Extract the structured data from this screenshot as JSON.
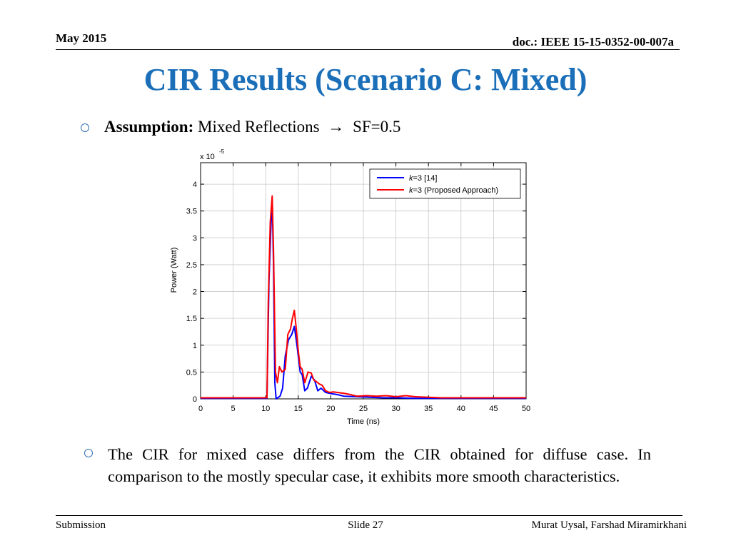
{
  "header": {
    "date": "May 2015",
    "doc": "doc.: IEEE 15-15-0352-00-007a"
  },
  "title": "CIR Results (Scenario C: Mixed)",
  "assumption": {
    "label": "Assumption:",
    "text": "Mixed Reflections",
    "arrow": "→",
    "sf": "SF=0.5"
  },
  "note": "The CIR for mixed case differs from the CIR obtained for diffuse case. In comparison to the mostly specular case, it exhibits more smooth characteristics.",
  "footer": {
    "left": "Submission",
    "center": "Slide 27",
    "right": "Murat Uysal, Farshad Miramirkhani"
  },
  "colors": {
    "title": "#1a6fb8",
    "bullet": "#2e6fb0",
    "series1": "#0000ff",
    "series2": "#ff0000"
  },
  "chart_data": {
    "type": "line",
    "xlabel": "Time (ns)",
    "ylabel": "Power (Watt)",
    "y_multiplier": "x 10",
    "y_exponent": "-5",
    "xlim": [
      0,
      50
    ],
    "ylim": [
      0,
      4.4
    ],
    "xticks": [
      0,
      5,
      10,
      15,
      20,
      25,
      30,
      35,
      40,
      45,
      50
    ],
    "yticks": [
      0,
      0.5,
      1,
      1.5,
      2,
      2.5,
      3,
      3.5,
      4
    ],
    "ytick_labels": [
      "0",
      "0.5",
      "1",
      "1.5",
      "2",
      "2.5",
      "3",
      "3.5",
      "4"
    ],
    "grid": true,
    "legend_position": "top-right",
    "series": [
      {
        "name_italic": "k",
        "name_rest": "=3 [14]",
        "color": "#0000ff",
        "points": [
          [
            0,
            0.01
          ],
          [
            10.2,
            0.01
          ],
          [
            10.5,
            2.2
          ],
          [
            10.8,
            3.2
          ],
          [
            11.0,
            3.75
          ],
          [
            11.2,
            2.5
          ],
          [
            11.4,
            0.3
          ],
          [
            11.6,
            0.0
          ],
          [
            12.2,
            0.05
          ],
          [
            12.6,
            0.2
          ],
          [
            13.0,
            0.8
          ],
          [
            13.5,
            1.1
          ],
          [
            14.0,
            1.2
          ],
          [
            14.4,
            1.35
          ],
          [
            14.8,
            1.0
          ],
          [
            15.3,
            0.5
          ],
          [
            15.6,
            0.45
          ],
          [
            16.0,
            0.15
          ],
          [
            16.4,
            0.2
          ],
          [
            17.0,
            0.42
          ],
          [
            17.5,
            0.35
          ],
          [
            18.0,
            0.15
          ],
          [
            18.5,
            0.2
          ],
          [
            19.2,
            0.12
          ],
          [
            20.0,
            0.1
          ],
          [
            21.0,
            0.08
          ],
          [
            22.0,
            0.05
          ],
          [
            24.0,
            0.04
          ],
          [
            26.0,
            0.03
          ],
          [
            28.0,
            0.02
          ],
          [
            30.0,
            0.02
          ],
          [
            33.0,
            0.01
          ],
          [
            40.0,
            0.01
          ],
          [
            50.0,
            0.01
          ]
        ]
      },
      {
        "name_italic": "k",
        "name_rest": "=3 (Proposed Approach)",
        "color": "#ff0000",
        "points": [
          [
            0,
            0.02
          ],
          [
            10.2,
            0.02
          ],
          [
            10.4,
            1.8
          ],
          [
            10.7,
            3.3
          ],
          [
            11.0,
            3.78
          ],
          [
            11.2,
            2.8
          ],
          [
            11.5,
            0.5
          ],
          [
            11.8,
            0.3
          ],
          [
            12.1,
            0.6
          ],
          [
            12.5,
            0.5
          ],
          [
            13.0,
            0.55
          ],
          [
            13.4,
            1.2
          ],
          [
            13.8,
            1.3
          ],
          [
            14.1,
            1.5
          ],
          [
            14.4,
            1.65
          ],
          [
            14.7,
            1.3
          ],
          [
            15.0,
            0.9
          ],
          [
            15.3,
            0.6
          ],
          [
            15.6,
            0.55
          ],
          [
            16.0,
            0.3
          ],
          [
            16.5,
            0.5
          ],
          [
            17.0,
            0.48
          ],
          [
            17.4,
            0.35
          ],
          [
            17.8,
            0.32
          ],
          [
            18.2,
            0.28
          ],
          [
            18.7,
            0.25
          ],
          [
            19.2,
            0.15
          ],
          [
            19.8,
            0.12
          ],
          [
            20.4,
            0.13
          ],
          [
            21.0,
            0.12
          ],
          [
            21.6,
            0.11
          ],
          [
            22.2,
            0.1
          ],
          [
            23.0,
            0.08
          ],
          [
            24.0,
            0.05
          ],
          [
            25.5,
            0.06
          ],
          [
            27.0,
            0.05
          ],
          [
            28.5,
            0.06
          ],
          [
            30.0,
            0.04
          ],
          [
            31.5,
            0.06
          ],
          [
            33.0,
            0.04
          ],
          [
            35.0,
            0.03
          ],
          [
            37.0,
            0.02
          ],
          [
            40.0,
            0.02
          ],
          [
            45.0,
            0.02
          ],
          [
            50.0,
            0.02
          ]
        ]
      }
    ]
  }
}
